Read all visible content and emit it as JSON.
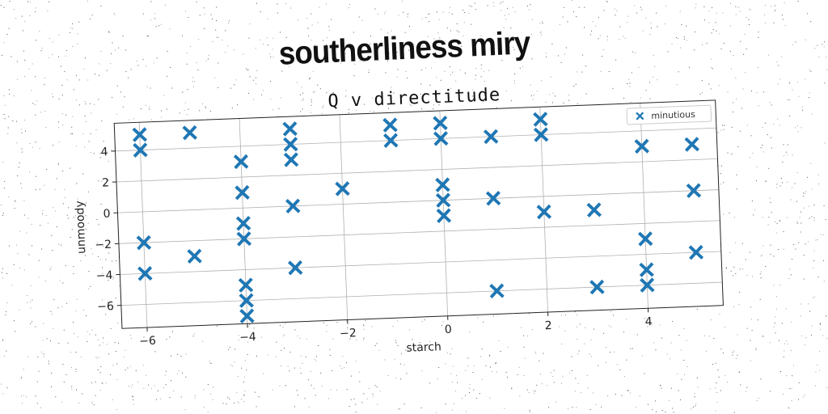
{
  "suptitle": "southerliness miry",
  "chart_data": {
    "type": "scatter",
    "title": "Q v directitude",
    "xlabel": "starch",
    "ylabel": "unmoody",
    "xlim": [
      -6.5,
      5.5
    ],
    "ylim": [
      -7.5,
      5.8
    ],
    "xticks": [
      -6,
      -4,
      -2,
      0,
      2,
      4
    ],
    "yticks": [
      -6,
      -4,
      -2,
      0,
      2,
      4
    ],
    "grid": true,
    "legend": "top-right",
    "colors": {
      "marker": "#1f77b4",
      "grid": "#b0b0b0"
    },
    "series": [
      {
        "name": "minutious",
        "marker": "X",
        "x": [
          -6,
          -6,
          -6,
          -6,
          -5,
          -5,
          -4,
          -4,
          -4,
          -4,
          -4,
          -4,
          -4,
          -3,
          -3,
          -3,
          -3,
          -3,
          -2,
          -1,
          -1,
          0,
          0,
          0,
          0,
          0,
          1,
          1,
          1,
          2,
          2,
          2,
          3,
          3,
          4,
          4,
          4,
          4,
          5,
          5,
          5
        ],
        "y": [
          5,
          4,
          -2,
          -4,
          5,
          -3,
          3,
          1,
          -1,
          -2,
          -5,
          -6,
          -7,
          5,
          4,
          3,
          0,
          -4,
          1,
          5,
          4,
          5,
          4,
          1,
          0,
          -1,
          4,
          0,
          -6,
          5,
          4,
          -1,
          -1,
          -6,
          -3,
          -5,
          -6,
          3,
          0,
          -4,
          3
        ]
      }
    ]
  }
}
